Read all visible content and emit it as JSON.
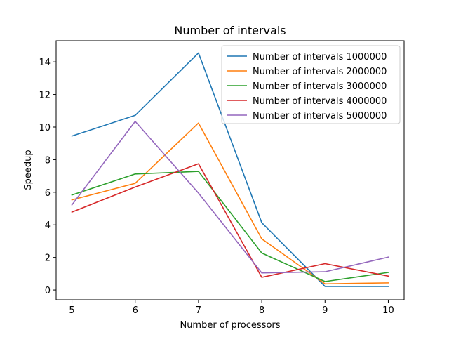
{
  "chart_data": {
    "type": "line",
    "title": "Number of intervals",
    "xlabel": "Number of processors",
    "ylabel": "Speedup",
    "x": [
      5,
      6,
      7,
      8,
      9,
      10
    ],
    "xlim": [
      4.75,
      10.25
    ],
    "ylim": [
      -0.6,
      15.3
    ],
    "xticks": [
      5,
      6,
      7,
      8,
      9,
      10
    ],
    "yticks": [
      0,
      2,
      4,
      6,
      8,
      10,
      12,
      14
    ],
    "grid": false,
    "legend_position": "top-right",
    "series": [
      {
        "name": "Number of intervals 1000000",
        "color": "#1f77b4",
        "values": [
          9.45,
          10.72,
          14.55,
          4.13,
          0.22,
          0.22
        ]
      },
      {
        "name": "Number of intervals 2000000",
        "color": "#ff7f0e",
        "values": [
          5.53,
          6.55,
          10.25,
          3.14,
          0.38,
          0.44
        ]
      },
      {
        "name": "Number of intervals 3000000",
        "color": "#2ca02c",
        "values": [
          5.83,
          7.12,
          7.28,
          2.27,
          0.52,
          1.08
        ]
      },
      {
        "name": "Number of intervals 4000000",
        "color": "#d62728",
        "values": [
          4.78,
          6.32,
          7.75,
          0.78,
          1.62,
          0.85
        ]
      },
      {
        "name": "Number of intervals 5000000",
        "color": "#9467bd",
        "values": [
          5.22,
          10.35,
          5.95,
          1.05,
          1.12,
          2.02
        ]
      }
    ]
  }
}
